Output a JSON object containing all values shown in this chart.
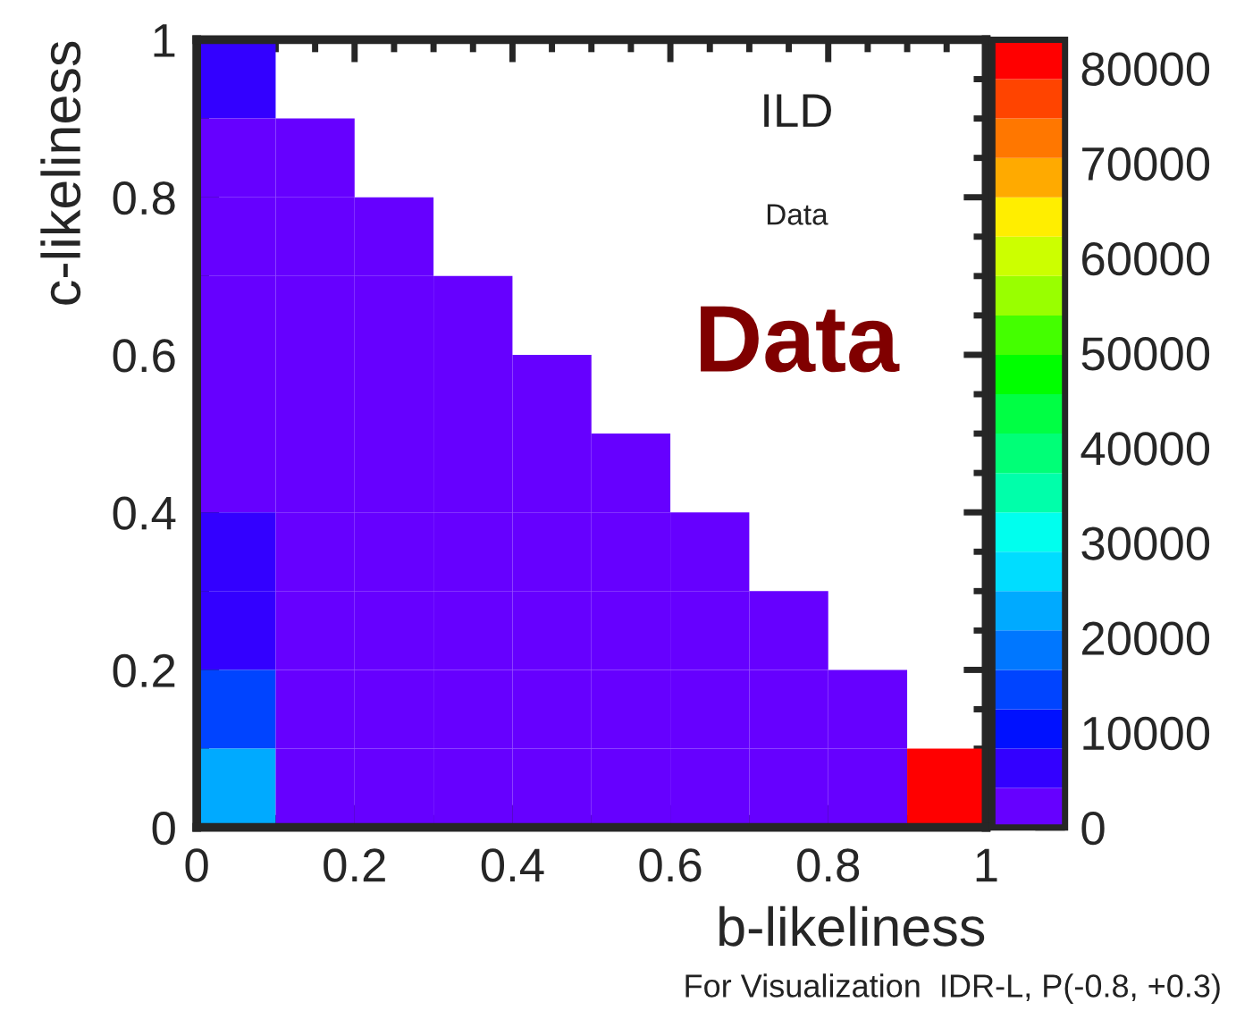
{
  "chart_data": {
    "type": "heatmap",
    "xlabel": "b-likeliness",
    "ylabel": "c-likeliness",
    "annotations": [
      "ILD",
      "Data",
      "Data",
      "For Visualization  IDR-L, P(-0.8, +0.3)"
    ],
    "xlim": [
      0,
      1
    ],
    "ylim": [
      0,
      1
    ],
    "xticks": [
      0,
      0.2,
      0.4,
      0.6,
      0.8,
      1
    ],
    "yticks": [
      0,
      0.2,
      0.4,
      0.6,
      0.8,
      1
    ],
    "clim": [
      0,
      83000
    ],
    "cticks": [
      0,
      10000,
      20000,
      30000,
      40000,
      50000,
      60000,
      70000,
      80000
    ],
    "cells": [
      [
        6000,
        null,
        null,
        null,
        null,
        null,
        null,
        null,
        null,
        null
      ],
      [
        2000,
        2000,
        null,
        null,
        null,
        null,
        null,
        null,
        null,
        null
      ],
      [
        2000,
        2000,
        2000,
        null,
        null,
        null,
        null,
        null,
        null,
        null
      ],
      [
        2000,
        2000,
        2000,
        2000,
        null,
        null,
        null,
        null,
        null,
        null
      ],
      [
        2000,
        2000,
        2000,
        2000,
        2000,
        null,
        null,
        null,
        null,
        null
      ],
      [
        2000,
        2000,
        2000,
        2000,
        2000,
        2000,
        null,
        null,
        null,
        null
      ],
      [
        6000,
        2000,
        2000,
        2000,
        2000,
        2000,
        2000,
        null,
        null,
        null
      ],
      [
        6000,
        2000,
        2000,
        2000,
        2000,
        2000,
        2000,
        2000,
        null,
        null
      ],
      [
        14000,
        2000,
        2000,
        2000,
        2000,
        2000,
        2000,
        2000,
        2000,
        null
      ],
      [
        22000,
        2000,
        2000,
        2000,
        2000,
        2000,
        2000,
        2000,
        2000,
        80000
      ]
    ]
  }
}
